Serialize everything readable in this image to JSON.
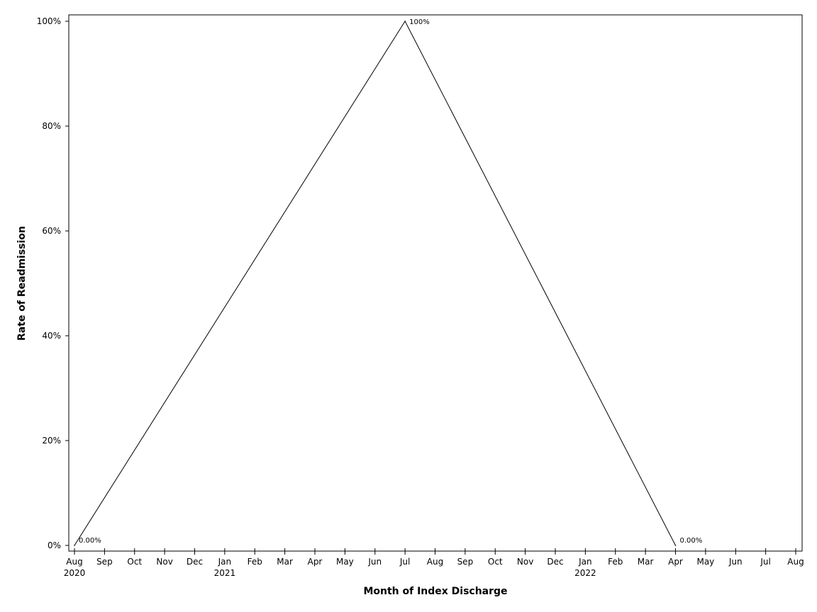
{
  "chart_data": {
    "type": "line",
    "title": "",
    "xlabel": "Month of Index Discharge",
    "ylabel": "Rate of Readmission",
    "x_ticks": [
      {
        "date": "2020-08",
        "label": "Aug",
        "year": "2020"
      },
      {
        "date": "2020-09",
        "label": "Sep"
      },
      {
        "date": "2020-10",
        "label": "Oct"
      },
      {
        "date": "2020-11",
        "label": "Nov"
      },
      {
        "date": "2020-12",
        "label": "Dec"
      },
      {
        "date": "2021-01",
        "label": "Jan",
        "year": "2021"
      },
      {
        "date": "2021-02",
        "label": "Feb"
      },
      {
        "date": "2021-03",
        "label": "Mar"
      },
      {
        "date": "2021-04",
        "label": "Apr"
      },
      {
        "date": "2021-05",
        "label": "May"
      },
      {
        "date": "2021-06",
        "label": "Jun"
      },
      {
        "date": "2021-07",
        "label": "Jul"
      },
      {
        "date": "2021-08",
        "label": "Aug"
      },
      {
        "date": "2021-09",
        "label": "Sep"
      },
      {
        "date": "2021-10",
        "label": "Oct"
      },
      {
        "date": "2021-11",
        "label": "Nov"
      },
      {
        "date": "2021-12",
        "label": "Dec"
      },
      {
        "date": "2022-01",
        "label": "Jan",
        "year": "2022"
      },
      {
        "date": "2022-02",
        "label": "Feb"
      },
      {
        "date": "2022-03",
        "label": "Mar"
      },
      {
        "date": "2022-04",
        "label": "Apr"
      },
      {
        "date": "2022-05",
        "label": "May"
      },
      {
        "date": "2022-06",
        "label": "Jun"
      },
      {
        "date": "2022-07",
        "label": "Jul"
      },
      {
        "date": "2022-08",
        "label": "Aug"
      }
    ],
    "y_ticks": [
      {
        "value": 0,
        "label": "0%"
      },
      {
        "value": 20,
        "label": "20%"
      },
      {
        "value": 40,
        "label": "40%"
      },
      {
        "value": 60,
        "label": "60%"
      },
      {
        "value": 80,
        "label": "80%"
      },
      {
        "value": 100,
        "label": "100%"
      }
    ],
    "ylim": [
      0,
      100
    ],
    "xlim": [
      "2020-08",
      "2022-08"
    ],
    "grid": false,
    "legend": "none",
    "series": [
      {
        "color": "#000000",
        "points": [
          {
            "x": "2020-08",
            "y": 0,
            "label": "0.00%"
          },
          {
            "x": "2021-07",
            "y": 100,
            "label": "100%"
          },
          {
            "x": "2022-04",
            "y": 0,
            "label": "0.00%"
          }
        ]
      }
    ]
  }
}
